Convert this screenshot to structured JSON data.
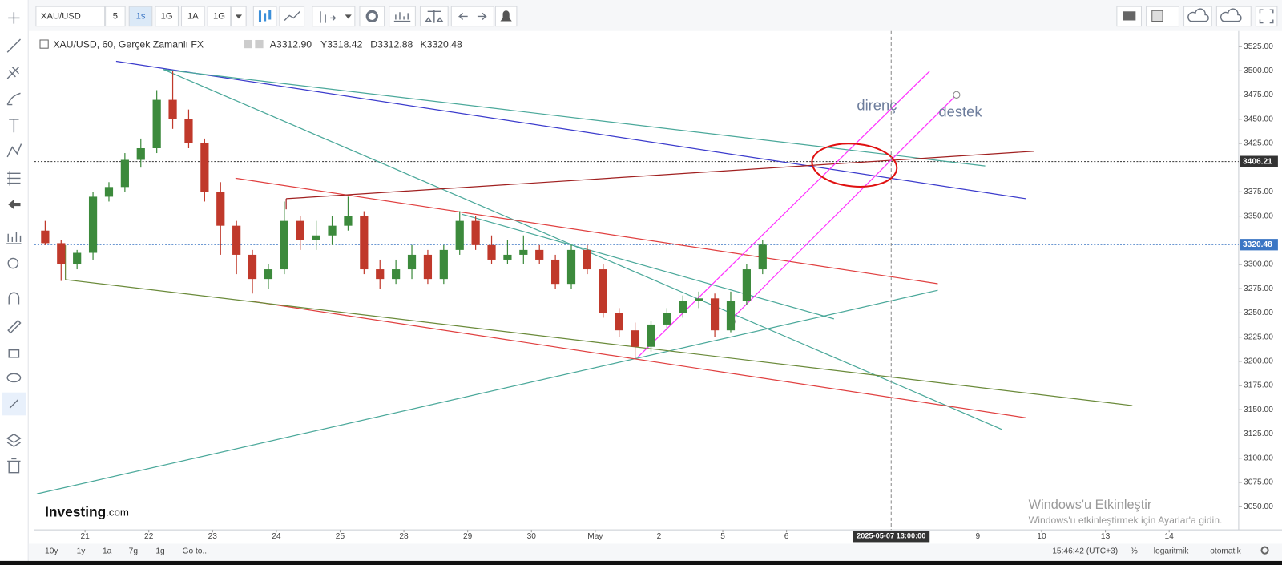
{
  "toolbar": {
    "symbol": "XAU/USD",
    "intervals": [
      "5",
      "1s",
      "1G",
      "1A",
      "1G"
    ]
  },
  "legend": {
    "title": "XAU/USD, 60, Gerçek Zamanlı FX",
    "values": [
      "A3312.90",
      "Y3318.42",
      "D3312.88",
      "K3320.48"
    ]
  },
  "chart_data": {
    "type": "candlestick",
    "categories": [
      null,
      null,
      null,
      "21",
      null,
      null,
      null,
      "22",
      null,
      null,
      null,
      "23",
      null,
      null,
      null,
      "24",
      null,
      null,
      null,
      "25",
      null,
      null,
      null,
      "28",
      null,
      null,
      null,
      "29",
      null,
      null,
      null,
      "30",
      null,
      null,
      null,
      "May",
      null,
      null,
      null,
      "2",
      null,
      null,
      null,
      "5",
      null,
      null,
      null,
      "6",
      null,
      null,
      null,
      null,
      null,
      null,
      null,
      null,
      null,
      null,
      null,
      "9",
      null,
      null,
      null,
      "10",
      null,
      null,
      null,
      "13",
      null,
      null,
      null,
      "14",
      null,
      null,
      null
    ],
    "open": [
      3335,
      3322,
      3300,
      3312,
      3370,
      3380,
      3408,
      3420,
      3470,
      3450,
      3425,
      3375,
      3340,
      3310,
      3285,
      3295,
      3345,
      3325,
      3330,
      3340,
      3350,
      3295,
      3285,
      3295,
      3310,
      3285,
      3315,
      3345,
      3320,
      3305,
      3310,
      3315,
      3305,
      3280,
      3315,
      3295,
      3250,
      3232,
      3215,
      3238,
      3250,
      3262,
      3265,
      3232,
      3262,
      3295,
      null,
      null,
      null,
      null,
      null,
      null,
      null,
      null,
      null,
      null,
      null,
      null,
      null,
      null,
      null,
      null,
      null,
      null,
      null,
      null,
      null,
      null,
      null,
      null,
      null,
      null,
      null,
      null,
      null
    ],
    "high": [
      3345,
      3325,
      3315,
      3375,
      3385,
      3415,
      3430,
      3480,
      3500,
      3460,
      3430,
      3385,
      3345,
      3315,
      3300,
      3365,
      3350,
      3345,
      3350,
      3370,
      3355,
      3305,
      3305,
      3320,
      3315,
      3320,
      3355,
      3350,
      3330,
      3325,
      3330,
      3320,
      3310,
      3320,
      3320,
      3300,
      3255,
      3240,
      3242,
      3255,
      3268,
      3272,
      3270,
      3272,
      3300,
      3325,
      null,
      null,
      null,
      null,
      null,
      null,
      null,
      null,
      null,
      null,
      null,
      null,
      null,
      null,
      null,
      null,
      null,
      null,
      null,
      null,
      null,
      null,
      null,
      null,
      null,
      null,
      null,
      null,
      null
    ],
    "low": [
      3320,
      3283,
      3295,
      3305,
      3365,
      3375,
      3400,
      3415,
      3440,
      3420,
      3365,
      3310,
      3290,
      3270,
      3275,
      3290,
      3315,
      3315,
      3320,
      3335,
      3290,
      3275,
      3280,
      3285,
      3280,
      3280,
      3310,
      3315,
      3300,
      3300,
      3300,
      3300,
      3275,
      3275,
      3290,
      3245,
      3225,
      3203,
      3210,
      3232,
      3245,
      3255,
      3225,
      3230,
      3258,
      3290,
      null,
      null,
      null,
      null,
      null,
      null,
      null,
      null,
      null,
      null,
      null,
      null,
      null,
      null,
      null,
      null,
      null,
      null,
      null,
      null,
      null,
      null,
      null,
      null,
      null,
      null,
      null,
      null,
      null
    ],
    "close": [
      3322,
      3300,
      3312,
      3370,
      3380,
      3408,
      3420,
      3470,
      3450,
      3425,
      3375,
      3340,
      3310,
      3285,
      3295,
      3345,
      3325,
      3330,
      3340,
      3350,
      3295,
      3285,
      3295,
      3310,
      3285,
      3315,
      3345,
      3320,
      3305,
      3310,
      3315,
      3305,
      3280,
      3315,
      3295,
      3250,
      3232,
      3215,
      3238,
      3250,
      3262,
      3265,
      3232,
      3262,
      3295,
      3320.48,
      null,
      null,
      null,
      null,
      null,
      null,
      null,
      null,
      null,
      null,
      null,
      null,
      null,
      null,
      null,
      null,
      null,
      null,
      null,
      null,
      null,
      null,
      null,
      null,
      null,
      null,
      null,
      null,
      null
    ],
    "up_color": "#3c8a3c",
    "down_color": "#c0392b",
    "ylim": [
      3026,
      3541
    ],
    "yticks": [
      {
        "value": 3050,
        "label": "3050.00"
      },
      {
        "value": 3075,
        "label": "3075.00"
      },
      {
        "value": 3100,
        "label": "3100.00"
      },
      {
        "value": 3125,
        "label": "3125.00"
      },
      {
        "value": 3150,
        "label": "3150.00"
      },
      {
        "value": 3175,
        "label": "3175.00"
      },
      {
        "value": 3200,
        "label": "3200.00"
      },
      {
        "value": 3225,
        "label": "3225.00"
      },
      {
        "value": 3250,
        "label": "3250.00"
      },
      {
        "value": 3275,
        "label": "3275.00"
      },
      {
        "value": 3300,
        "label": "3300.00"
      },
      {
        "value": 3350,
        "label": "3350.00"
      },
      {
        "value": 3375,
        "label": "3375.00"
      },
      {
        "value": 3425,
        "label": "3425.00"
      },
      {
        "value": 3450,
        "label": "3450.00"
      },
      {
        "value": 3475,
        "label": "3475.00"
      },
      {
        "value": 3500,
        "label": "3500.00"
      },
      {
        "value": 3525,
        "label": "3525.00"
      }
    ],
    "price_lines": [
      3406.21,
      3320.48
    ],
    "price_line_colors": [
      "#333333",
      "#3b76c4"
    ],
    "grid": false,
    "annotations": [
      "direnç",
      "destek"
    ],
    "crosshair_label": "2025-05-07 13:00:00"
  },
  "watermark": {
    "brand": "Investing",
    "suffix": ".com"
  },
  "activation": {
    "title": "Windows'u Etkinleştir",
    "subtitle": "Windows'u etkinleştirmek için Ayarlar'a gidin."
  },
  "bottom_bar": {
    "ranges": [
      "10y",
      "1y",
      "1a",
      "7g",
      "1g"
    ],
    "goto": "Go to...",
    "clock": "15:46:42 (UTC+3)",
    "percent": "%",
    "log": "logaritmik",
    "auto": "otomatik"
  }
}
